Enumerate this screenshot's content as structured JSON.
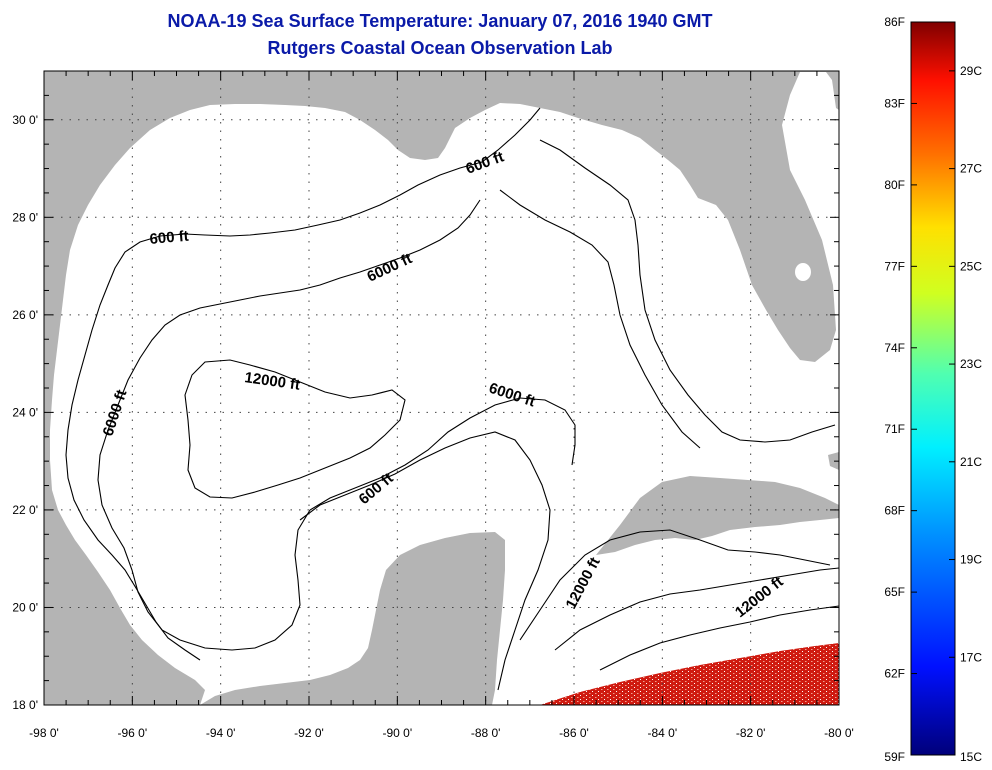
{
  "header": {
    "title": "NOAA-19 Sea Surface Temperature:  January 07, 2016 1940 GMT",
    "subtitle": "Rutgers Coastal Ocean Observation Lab"
  },
  "axes": {
    "x_ticks": [
      "-98 0'",
      "-96 0'",
      "-94 0'",
      "-92 0'",
      "-90 0'",
      "-88 0'",
      "-86 0'",
      "-84 0'",
      "-82 0'",
      "-80 0'"
    ],
    "y_ticks": [
      "18 0'",
      "20 0'",
      "22 0'",
      "24 0'",
      "26 0'",
      "28 0'",
      "30 0'"
    ]
  },
  "contour_labels": [
    {
      "id": "c600-north",
      "text": "600 ft"
    },
    {
      "id": "c600-west",
      "text": "600 ft"
    },
    {
      "id": "c6000-north",
      "text": "6000 ft"
    },
    {
      "id": "c6000-west",
      "text": "6000 ft"
    },
    {
      "id": "c6000-mid",
      "text": "6000 ft"
    },
    {
      "id": "c12000-center",
      "text": "12000 ft"
    },
    {
      "id": "c600-yucatan",
      "text": "600 ft"
    },
    {
      "id": "c12000-yucatan",
      "text": "12000 ft"
    },
    {
      "id": "c12000-carib",
      "text": "12000 ft"
    }
  ],
  "colorbar": {
    "f_labels": [
      "86F",
      "83F",
      "80F",
      "77F",
      "74F",
      "71F",
      "68F",
      "65F",
      "62F",
      "59F"
    ],
    "c_labels": [
      "29C",
      "27C",
      "25C",
      "23C",
      "21C",
      "19C",
      "17C",
      "15C"
    ]
  },
  "colors": {
    "land": "#b4b4b4",
    "ocean": "#ffffff",
    "title": "#0a1aa8",
    "sst_warm": "#d01a10"
  }
}
